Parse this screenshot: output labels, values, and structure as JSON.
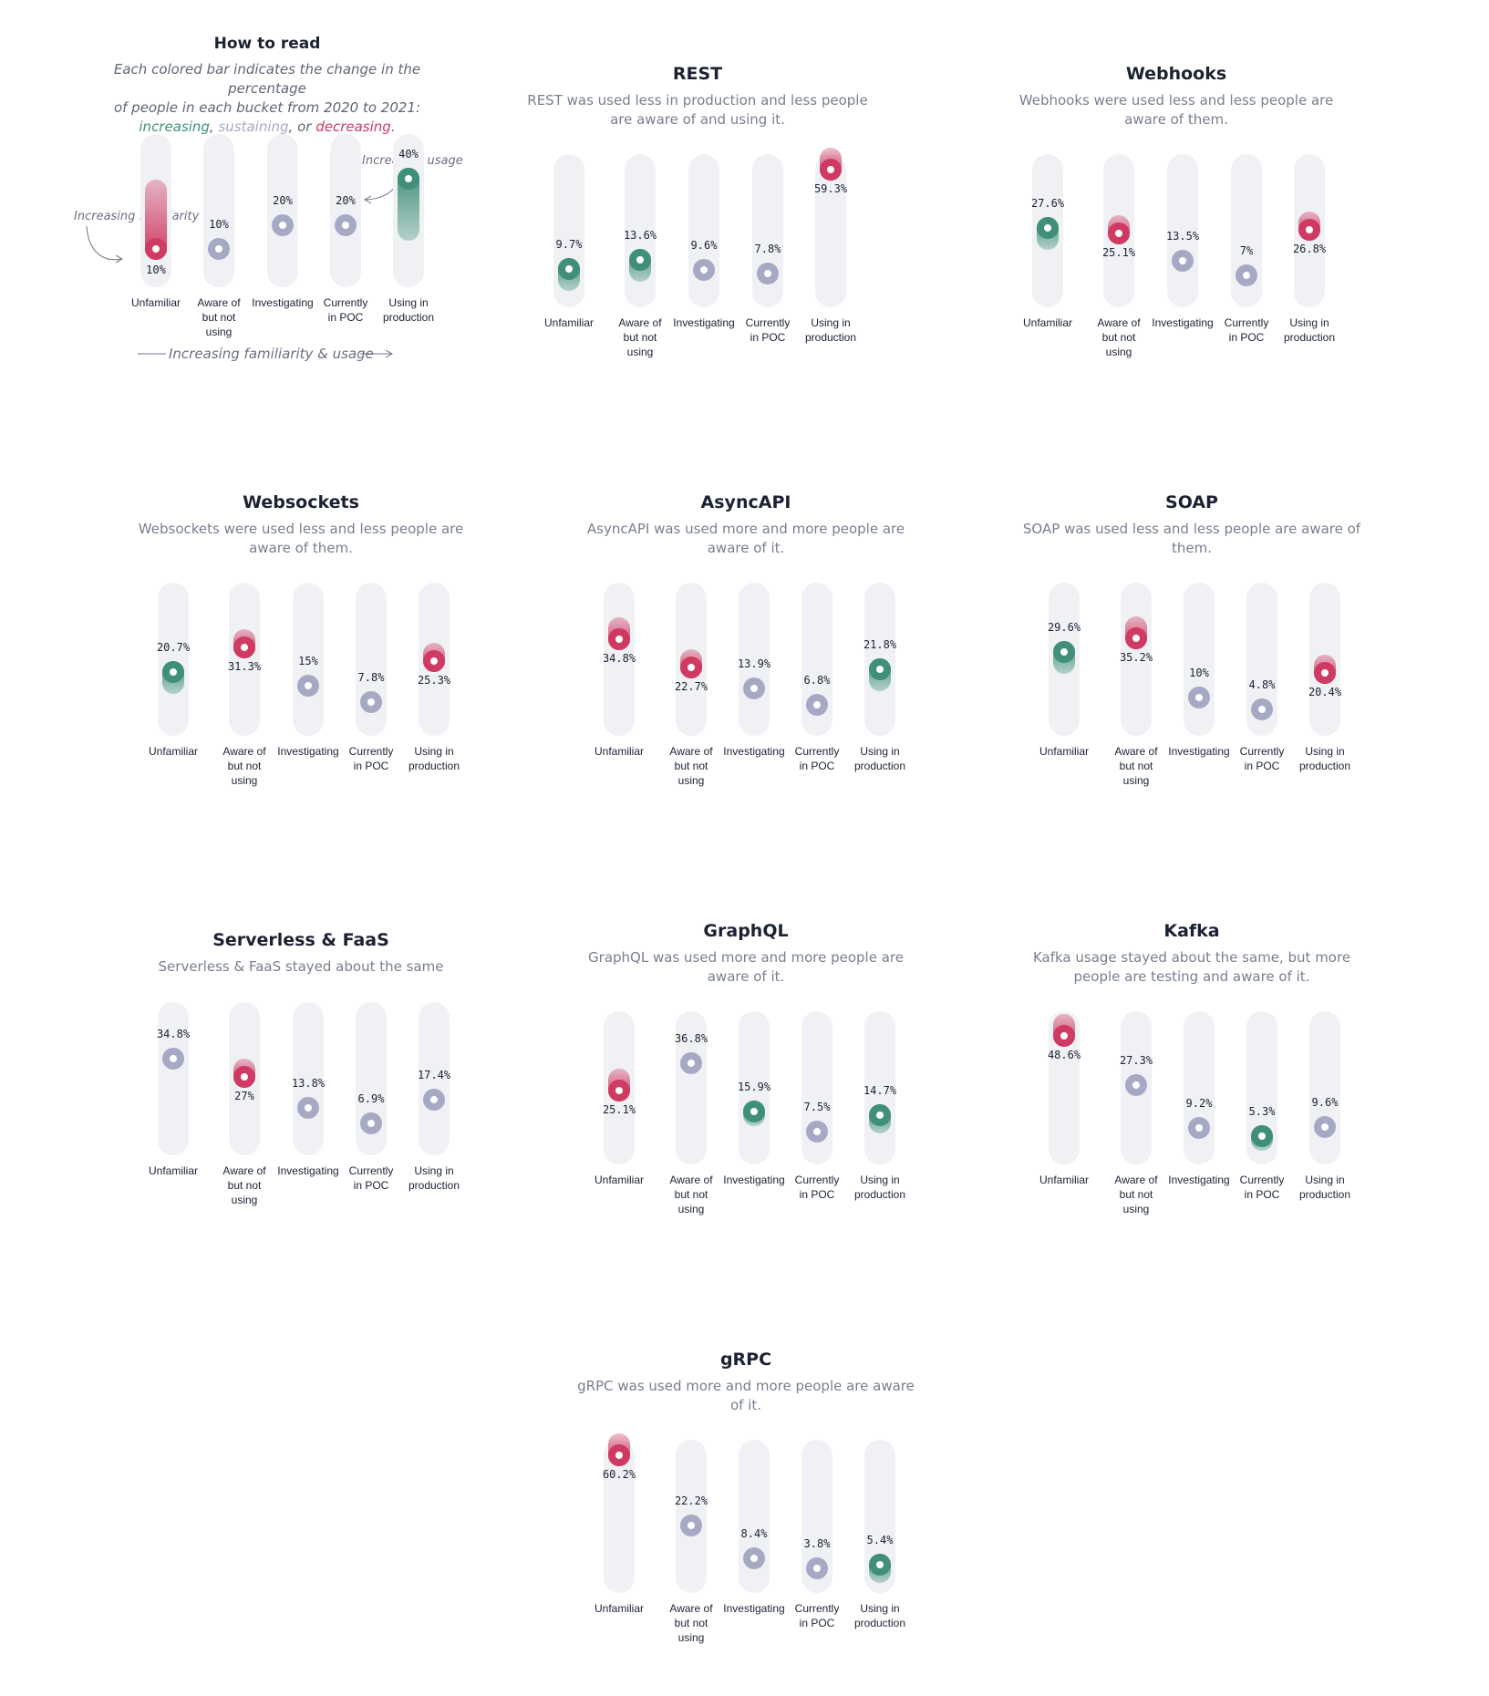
{
  "colors": {
    "increasing": "#3f8f7a",
    "sustaining": "#a6a9c4",
    "decreasing": "#cf3a63",
    "track": "#f0f1f4"
  },
  "categories": [
    "Unfamiliar",
    "Aware of but not using",
    "Investigating",
    "Currently in POC",
    "Using in production"
  ],
  "guide": {
    "title": "How to read",
    "desc_line1": "Each colored bar indicates the change in the percentage",
    "desc_line2": "of people in each bucket from 2020 to 2021:",
    "word_increasing": "increasing",
    "sep1": ", ",
    "word_sustaining": "sustaining",
    "sep2": ", or ",
    "word_decreasing": "decreasing",
    "end": ".",
    "annotation_familiarity": "Increasing familiarity",
    "annotation_usage": "Increasing usage",
    "axis_note": "Increasing familiarity & usage"
  },
  "chart_data": [
    {
      "type": "range-bar",
      "title": "How to read",
      "categories": [
        "Unfamiliar",
        "Aware of but not using",
        "Investigating",
        "Currently in POC",
        "Using in production"
      ],
      "values": [
        10,
        10,
        20,
        20,
        40
      ],
      "labels": [
        "10%",
        "10%",
        "20%",
        "20%",
        "40%"
      ],
      "trend": [
        "decreasing",
        "sustaining",
        "sustaining",
        "sustaining",
        "increasing"
      ],
      "change": [
        8,
        0,
        0,
        0,
        7
      ]
    },
    {
      "type": "range-bar",
      "title": "REST",
      "description": "REST was used less in production and less people are aware of and using it.",
      "categories": [
        "Unfamiliar",
        "Aware of but not using",
        "Investigating",
        "Currently in POC",
        "Using in production"
      ],
      "values": [
        9.7,
        13.6,
        9.6,
        7.8,
        59.3
      ],
      "labels": [
        "9.7%",
        "13.6%",
        "9.6%",
        "7.8%",
        "59.3%"
      ],
      "trend": [
        "increasing",
        "increasing",
        "sustaining",
        "sustaining",
        "decreasing"
      ],
      "change": [
        1.5,
        1.5,
        0,
        0,
        1.5
      ]
    },
    {
      "type": "range-bar",
      "title": "Webhooks",
      "description": "Webhooks were used less and less people are aware of them.",
      "categories": [
        "Unfamiliar",
        "Aware of but not using",
        "Investigating",
        "Currently in POC",
        "Using in production"
      ],
      "values": [
        27.6,
        25.1,
        13.5,
        7,
        26.8
      ],
      "labels": [
        "27.6%",
        "25.1%",
        "13.5%",
        "7%",
        "26.8%"
      ],
      "trend": [
        "increasing",
        "decreasing",
        "sustaining",
        "sustaining",
        "decreasing"
      ],
      "change": [
        1.5,
        1,
        0,
        0,
        1
      ]
    },
    {
      "type": "range-bar",
      "title": "Websockets",
      "description": "Websockets were used less and less people are aware of them.",
      "categories": [
        "Unfamiliar",
        "Aware of but not using",
        "Investigating",
        "Currently in POC",
        "Using in production"
      ],
      "values": [
        20.7,
        31.3,
        15,
        7.8,
        25.3
      ],
      "labels": [
        "20.7%",
        "31.3%",
        "15%",
        "7.8%",
        "25.3%"
      ],
      "trend": [
        "increasing",
        "decreasing",
        "sustaining",
        "sustaining",
        "decreasing"
      ],
      "change": [
        1.5,
        1,
        0,
        0,
        1
      ]
    },
    {
      "type": "range-bar",
      "title": "AsyncAPI",
      "description": "AsyncAPI was used more and more people are aware of it.",
      "categories": [
        "Unfamiliar",
        "Aware of but not using",
        "Investigating",
        "Currently in POC",
        "Using in production"
      ],
      "values": [
        34.8,
        22.7,
        13.9,
        6.8,
        21.8
      ],
      "labels": [
        "34.8%",
        "22.7%",
        "13.9%",
        "6.8%",
        "21.8%"
      ],
      "trend": [
        "decreasing",
        "decreasing",
        "sustaining",
        "sustaining",
        "increasing"
      ],
      "change": [
        1.5,
        1,
        0,
        0,
        1.5
      ]
    },
    {
      "type": "range-bar",
      "title": "SOAP",
      "description": "SOAP was used less and less people are aware of them.",
      "categories": [
        "Unfamiliar",
        "Aware of but not using",
        "Investigating",
        "Currently in POC",
        "Using in production"
      ],
      "values": [
        29.6,
        35.2,
        10,
        4.8,
        20.4
      ],
      "labels": [
        "29.6%",
        "35.2%",
        "10%",
        "4.8%",
        "20.4%"
      ],
      "trend": [
        "increasing",
        "decreasing",
        "sustaining",
        "sustaining",
        "decreasing"
      ],
      "change": [
        1.5,
        1.5,
        0,
        0,
        1
      ]
    },
    {
      "type": "range-bar",
      "title": "Serverless & FaaS",
      "description": "Serverless & FaaS stayed about the same",
      "categories": [
        "Unfamiliar",
        "Aware of but not using",
        "Investigating",
        "Currently in POC",
        "Using in production"
      ],
      "values": [
        34.8,
        27,
        13.8,
        6.9,
        17.4
      ],
      "labels": [
        "34.8%",
        "27%",
        "13.8%",
        "6.9%",
        "17.4%"
      ],
      "trend": [
        "sustaining",
        "decreasing",
        "sustaining",
        "sustaining",
        "sustaining"
      ],
      "change": [
        0,
        1,
        0,
        0,
        0
      ]
    },
    {
      "type": "range-bar",
      "title": "GraphQL",
      "description": "GraphQL was used more and more people are aware of it.",
      "categories": [
        "Unfamiliar",
        "Aware of but not using",
        "Investigating",
        "Currently in POC",
        "Using in production"
      ],
      "values": [
        25.1,
        36.8,
        15.9,
        7.5,
        14.7
      ],
      "labels": [
        "25.1%",
        "36.8%",
        "15.9%",
        "7.5%",
        "14.7%"
      ],
      "trend": [
        "decreasing",
        "sustaining",
        "increasing",
        "sustaining",
        "increasing"
      ],
      "change": [
        1.5,
        0,
        0.5,
        0,
        1
      ]
    },
    {
      "type": "range-bar",
      "title": "Kafka",
      "description": "Kafka usage stayed about the same, but more people are testing and aware of it.",
      "categories": [
        "Unfamiliar",
        "Aware of but not using",
        "Investigating",
        "Currently in POC",
        "Using in production"
      ],
      "values": [
        48.6,
        27.3,
        9.2,
        5.3,
        9.6
      ],
      "labels": [
        "48.6%",
        "27.3%",
        "9.2%",
        "5.3%",
        "9.6%"
      ],
      "trend": [
        "decreasing",
        "sustaining",
        "sustaining",
        "increasing",
        "sustaining"
      ],
      "change": [
        1.5,
        0,
        0,
        0.5,
        0
      ]
    },
    {
      "type": "range-bar",
      "title": "gRPC",
      "description": "gRPC was used more and more people are aware of it.",
      "categories": [
        "Unfamiliar",
        "Aware of but not using",
        "Investigating",
        "Currently in POC",
        "Using in production"
      ],
      "values": [
        60.2,
        22.2,
        8.4,
        3.8,
        5.4
      ],
      "labels": [
        "60.2%",
        "22.2%",
        "8.4%",
        "3.8%",
        "5.4%"
      ],
      "trend": [
        "decreasing",
        "sustaining",
        "sustaining",
        "sustaining",
        "increasing"
      ],
      "change": [
        1.5,
        0,
        0,
        0,
        1
      ]
    }
  ]
}
